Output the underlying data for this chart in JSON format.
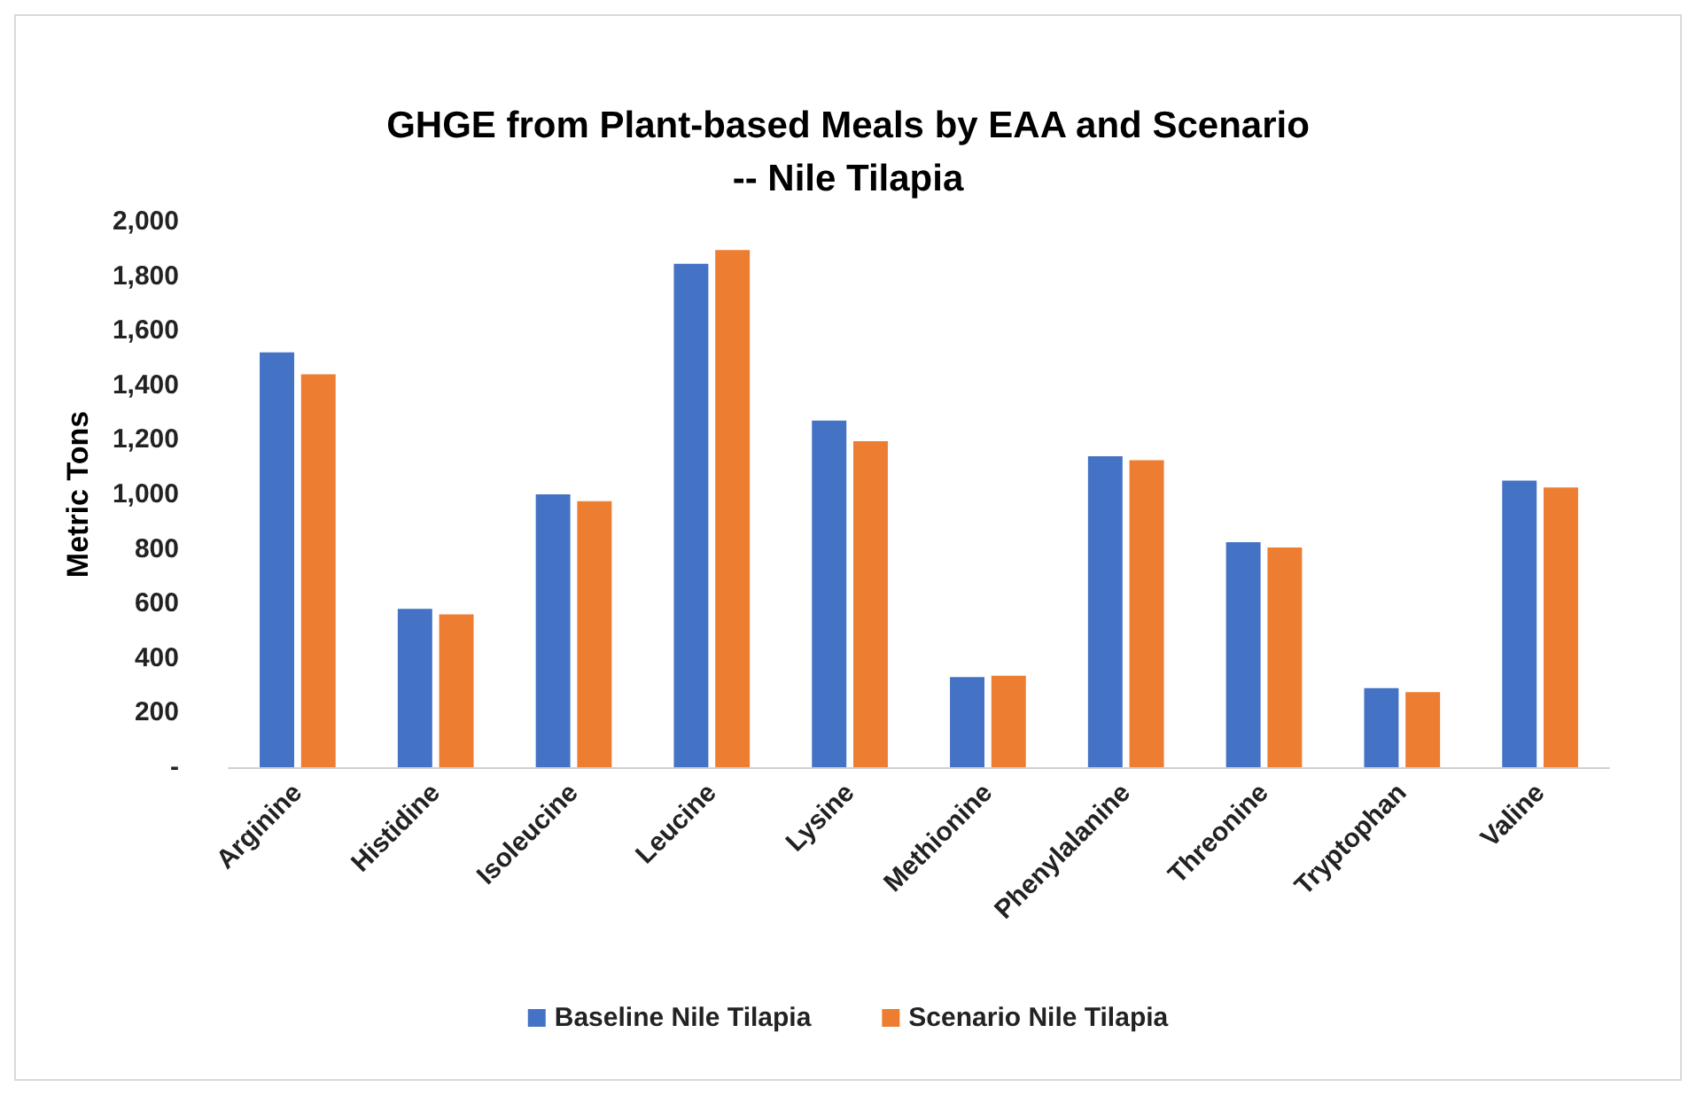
{
  "chart_data": {
    "type": "bar",
    "title": "GHGE from Plant-based Meals by EAA and Scenario\n-- Nile Tilapia",
    "ylabel": "Metric Tons",
    "categories": [
      "Arginine",
      "Histidine",
      "Isoleucine",
      "Leucine",
      "Lysine",
      "Methionine",
      "Phenylalanine",
      "Threonine",
      "Tryptophan",
      "Valine"
    ],
    "series": [
      {
        "name": "Baseline Nile Tilapia",
        "color": "#4472c4",
        "values": [
          1520,
          580,
          1000,
          1845,
          1270,
          330,
          1140,
          825,
          290,
          1050
        ]
      },
      {
        "name": "Scenario Nile Tilapia",
        "color": "#ed7d31",
        "values": [
          1440,
          560,
          975,
          1895,
          1195,
          335,
          1125,
          805,
          275,
          1025
        ]
      }
    ],
    "ylim": [
      0,
      2000
    ],
    "yticks": [
      {
        "value": 0,
        "label": "-"
      },
      {
        "value": 200,
        "label": "200"
      },
      {
        "value": 400,
        "label": "400"
      },
      {
        "value": 600,
        "label": "600"
      },
      {
        "value": 800,
        "label": "800"
      },
      {
        "value": 1000,
        "label": "1,000"
      },
      {
        "value": 1200,
        "label": "1,200"
      },
      {
        "value": 1400,
        "label": "1,400"
      },
      {
        "value": 1600,
        "label": "1,600"
      },
      {
        "value": 1800,
        "label": "1,800"
      },
      {
        "value": 2000,
        "label": "2,000"
      }
    ],
    "grid": false,
    "legend": "bottom"
  }
}
